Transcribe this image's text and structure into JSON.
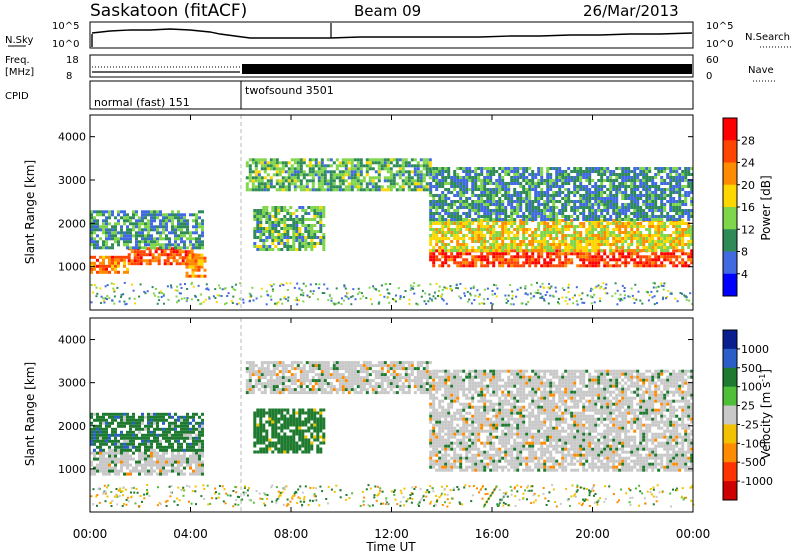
{
  "header": {
    "station": "Saskatoon (fitACF)",
    "beam": "Beam 09",
    "date": "26/Mar/2013"
  },
  "panels": {
    "nsky": {
      "label": "N.Sky",
      "left_ticks": [
        "10^5",
        "10^0"
      ],
      "right_ticks": [
        "10^5",
        "10^0"
      ],
      "right_label": "N.Search"
    },
    "freq": {
      "label_line1": "Freq.",
      "label_line2": "[MHz]",
      "left_ticks": [
        "18",
        "8"
      ],
      "right_ticks": [
        "60",
        "0"
      ],
      "right_label": "Nave"
    },
    "cpid": {
      "label": "CPID",
      "segments": [
        {
          "name": "normal (fast) 151",
          "start_h": 0,
          "end_h": 6
        },
        {
          "name": "twofsound 3501",
          "start_h": 6,
          "end_h": 24
        }
      ]
    }
  },
  "power_colorbar": {
    "label": "Power [dB]",
    "ticks": [
      "28",
      "24",
      "20",
      "16",
      "12",
      "8",
      "4"
    ],
    "colors": [
      "#ff0000",
      "#ff4500",
      "#ff8c00",
      "#ffd700",
      "#7fd64a",
      "#2e8b57",
      "#4169e1",
      "#0000ff"
    ]
  },
  "velocity_colorbar": {
    "label": "Velocity [m s",
    "label_sup": "-1",
    "label_end": "]",
    "ticks": [
      "1000",
      "500",
      "100",
      "25",
      "-25",
      "-100",
      "-500",
      "-1000"
    ],
    "colors": [
      "#0b1e8f",
      "#2a5fc9",
      "#1d7a2e",
      "#4fbf3a",
      "#c8c8c8",
      "#f2c200",
      "#ff8c00",
      "#ff3300",
      "#cc0000"
    ]
  },
  "chart_data": [
    {
      "type": "heatmap",
      "name": "Power",
      "ylabel": "Slant Range [km]",
      "yticks": [
        1000,
        2000,
        3000,
        4000
      ],
      "ylim": [
        0,
        4500
      ],
      "xlim": [
        0,
        24
      ],
      "echo_regions": [
        {
          "t0": 0.0,
          "t1": 1.5,
          "r0": 900,
          "r1": 1250,
          "db": 24
        },
        {
          "t0": 1.5,
          "t1": 4.2,
          "r0": 1100,
          "r1": 1450,
          "db": 26
        },
        {
          "t0": 0.0,
          "t1": 4.5,
          "r0": 1450,
          "r1": 2300,
          "db": 10
        },
        {
          "t0": 3.8,
          "t1": 4.6,
          "r0": 750,
          "r1": 1300,
          "db": 22
        },
        {
          "t0": 6.5,
          "t1": 9.3,
          "r0": 1400,
          "r1": 2400,
          "db": 12
        },
        {
          "t0": 6.2,
          "t1": 13.5,
          "r0": 2800,
          "r1": 3500,
          "db": 12
        },
        {
          "t0": 13.5,
          "t1": 24.0,
          "r0": 1000,
          "r1": 1400,
          "db": 27
        },
        {
          "t0": 13.5,
          "t1": 24.0,
          "r0": 1400,
          "r1": 2100,
          "db": 18
        },
        {
          "t0": 13.5,
          "t1": 24.0,
          "r0": 2100,
          "r1": 3300,
          "db": 9
        }
      ]
    },
    {
      "type": "heatmap",
      "name": "Velocity",
      "ylabel": "Slant Range [km]",
      "xlabel": "Time UT",
      "xticks": [
        "00:00",
        "04:00",
        "08:00",
        "12:00",
        "16:00",
        "20:00",
        "00:00"
      ],
      "yticks": [
        1000,
        2000,
        3000,
        4000
      ],
      "ylim": [
        0,
        4500
      ],
      "xlim": [
        0,
        24
      ],
      "echo_regions": [
        {
          "t0": 0.0,
          "t1": 4.5,
          "r0": 900,
          "r1": 1400,
          "vel": 0
        },
        {
          "t0": 0.0,
          "t1": 4.5,
          "r0": 1400,
          "r1": 2300,
          "vel": 150
        },
        {
          "t0": 6.5,
          "t1": 9.3,
          "r0": 1400,
          "r1": 2400,
          "vel": 80
        },
        {
          "t0": 6.2,
          "t1": 13.5,
          "r0": 2800,
          "r1": 3500,
          "vel": 0
        },
        {
          "t0": 13.5,
          "t1": 24.0,
          "r0": 1000,
          "r1": 3300,
          "vel": 0
        }
      ]
    }
  ]
}
